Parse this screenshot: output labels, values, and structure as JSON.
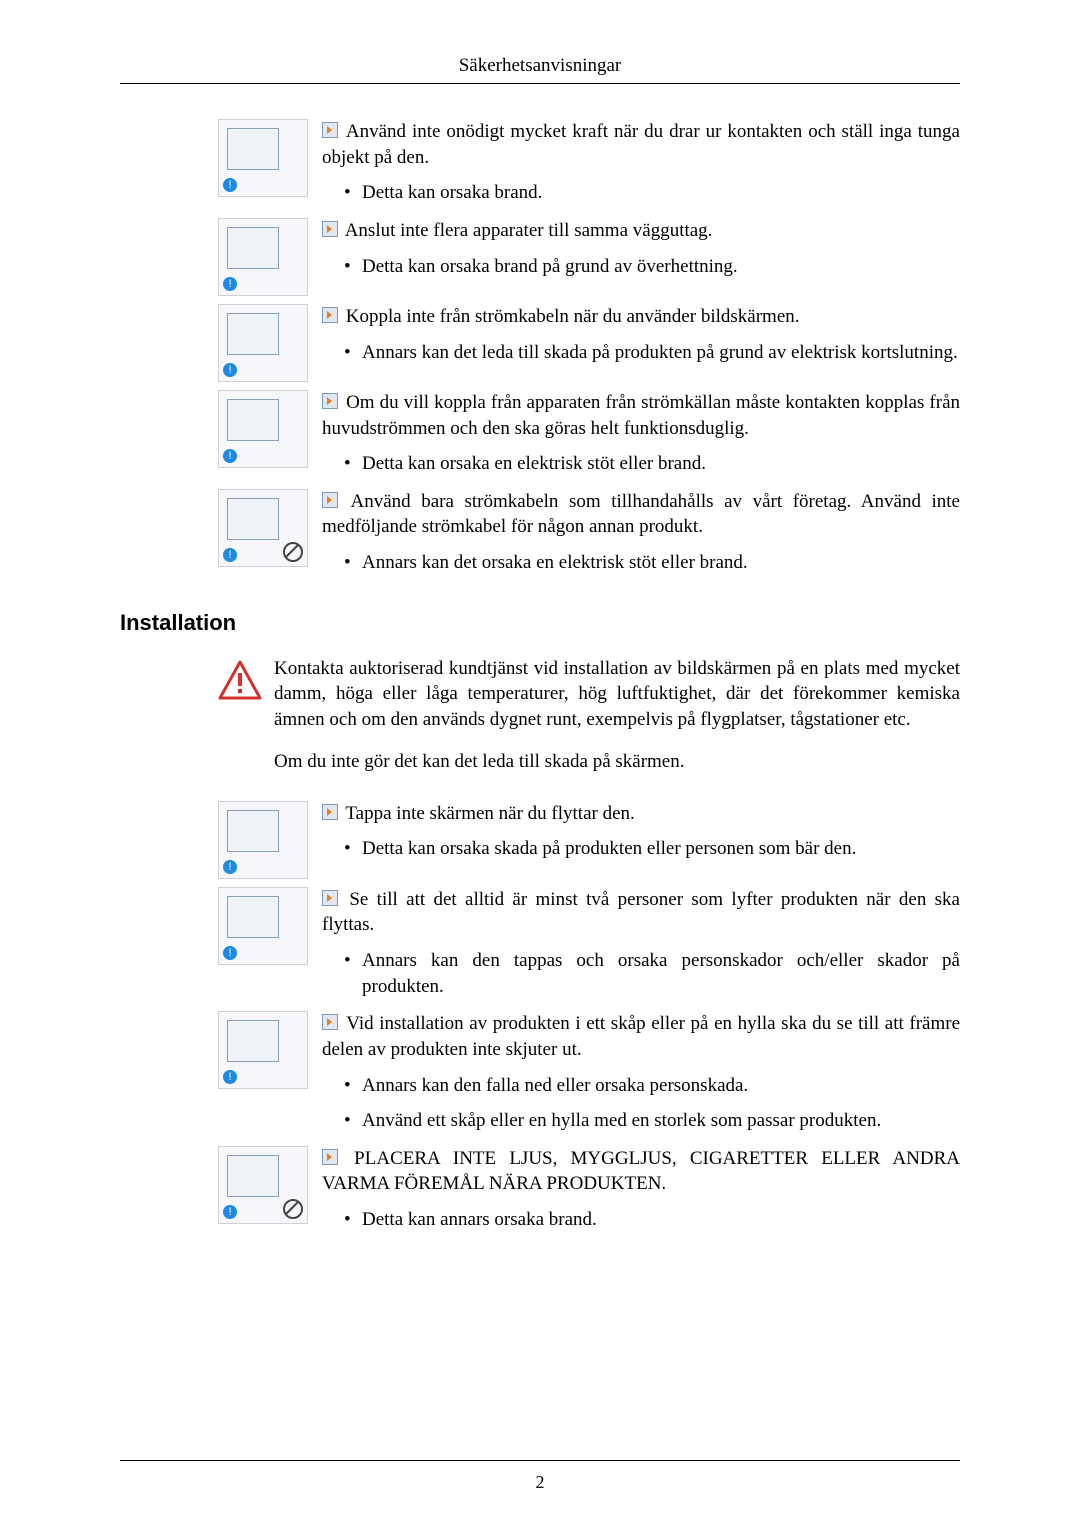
{
  "header": {
    "title": "Säkerhetsanvisningar"
  },
  "page_number": "2",
  "items_top": [
    {
      "icon": "force-plug-icon",
      "main": "Använd inte onödigt mycket kraft när du drar ur kontakten och ställ inga tunga objekt på den.",
      "subs": [
        "Detta kan orsaka brand."
      ]
    },
    {
      "icon": "multi-outlet-icon",
      "main": "Anslut inte flera apparater till samma vägguttag.",
      "subs": [
        "Detta kan orsaka brand på grund av överhettning."
      ]
    },
    {
      "icon": "unplug-use-icon",
      "main": "Koppla inte från strömkabeln när du använder bildskärmen.",
      "subs": [
        "Annars kan det leda till skada på produkten på grund av elektrisk kortslutning."
      ]
    },
    {
      "icon": "disconnect-mains-icon",
      "main": "Om du vill koppla från apparaten från strömkällan måste kontakten kopplas från huvudströmmen och den ska göras helt funktionsduglig.",
      "subs": [
        "Detta kan orsaka en elektrisk stöt eller brand."
      ]
    },
    {
      "icon": "supplied-cable-icon",
      "main": "Använd bara strömkabeln som tillhandahålls av vårt företag. Använd inte medföljande strömkabel för någon annan produkt.",
      "subs": [
        "Annars kan det orsaka en elektrisk stöt eller brand."
      ]
    }
  ],
  "section2": {
    "heading": "Installation",
    "intro": "Kontakta auktoriserad kundtjänst vid installation av bildskärmen på en plats med mycket damm, höga eller låga temperaturer, hög luftfuktighet, där det förekommer kemiska ämnen och om den används dygnet runt, exempelvis på flygplatser, tågstationer etc.",
    "intro_after": "Om du inte gör det kan det leda till skada på skärmen."
  },
  "items_bottom": [
    {
      "icon": "drop-screen-icon",
      "main": "Tappa inte skärmen när du flyttar den.",
      "subs": [
        "Detta kan orsaka skada på produkten eller personen som bär den."
      ]
    },
    {
      "icon": "two-persons-icon",
      "main": "Se till att det alltid är minst två personer som lyfter produkten när den ska flyttas.",
      "subs": [
        "Annars kan den tappas och orsaka personskador och/eller skador på produkten."
      ]
    },
    {
      "icon": "shelf-install-icon",
      "main": "Vid installation av produkten i ett skåp eller på en hylla ska du se till att främre delen av produkten inte skjuter ut.",
      "subs": [
        "Annars kan den falla ned eller orsaka personskada.",
        "Använd ett skåp eller en hylla med en storlek som passar produkten."
      ]
    },
    {
      "icon": "candle-heat-icon",
      "main": "PLACERA INTE LJUS, MYGGLJUS, CIGARETTER ELLER ANDRA VARMA FÖREMÅL NÄRA PRODUKTEN.",
      "subs": [
        "Detta kan annars orsaka brand."
      ]
    }
  ]
}
